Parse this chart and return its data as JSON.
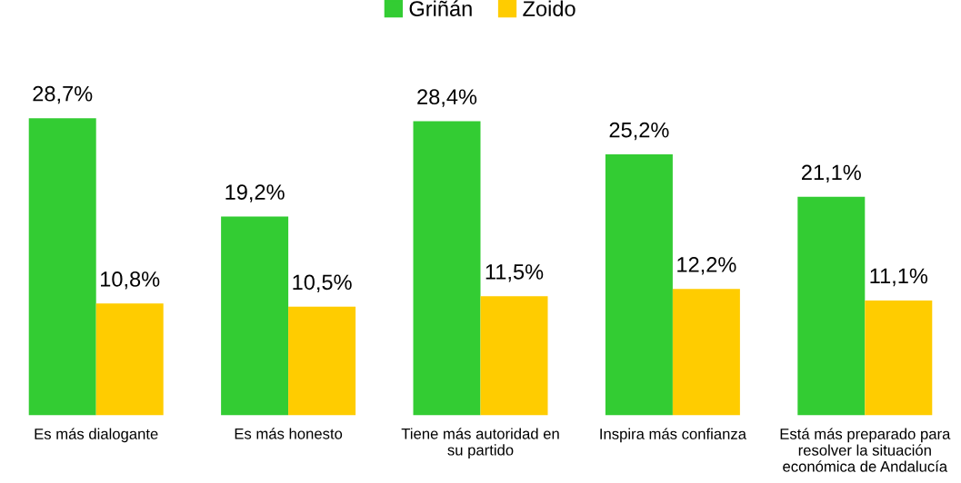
{
  "chart_data": {
    "type": "bar",
    "categories": [
      "Es más dialogante",
      "Es más honesto",
      "Tiene más autoridad en\nsu partido",
      "Inspira más confianza",
      "Está más preparado para\nresolver la situación\neconómica de Andalucía"
    ],
    "series": [
      {
        "name": "Griñán",
        "color": "#33cc33",
        "values": [
          28.7,
          19.2,
          28.4,
          25.2,
          21.1
        ],
        "value_labels": [
          "28,7%",
          "19,2%",
          "28,4%",
          "25,2%",
          "21,1%"
        ]
      },
      {
        "name": "Zoido",
        "color": "#ffcc00",
        "values": [
          10.8,
          10.5,
          11.5,
          12.2,
          11.1
        ],
        "value_labels": [
          "10,8%",
          "10,5%",
          "11,5%",
          "12,2%",
          "11,1%"
        ]
      }
    ],
    "legend": "top",
    "grid": false,
    "tick_labels": "x"
  }
}
